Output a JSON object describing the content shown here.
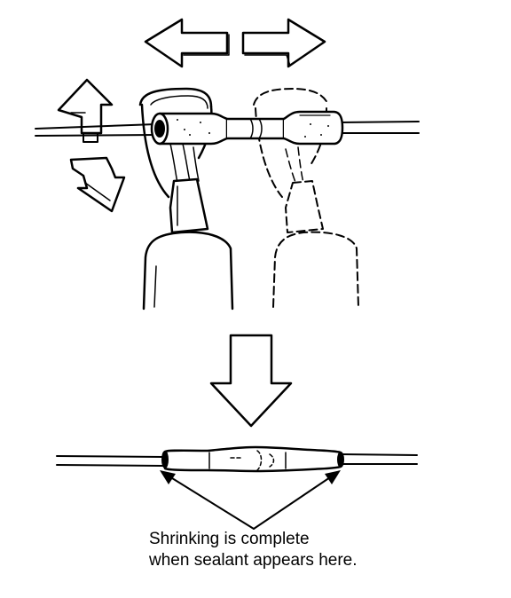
{
  "caption": {
    "line1": "Shrinking is complete",
    "line2": "when sealant appears here."
  },
  "colors": {
    "ink": "#000000",
    "paper": "#ffffff"
  }
}
